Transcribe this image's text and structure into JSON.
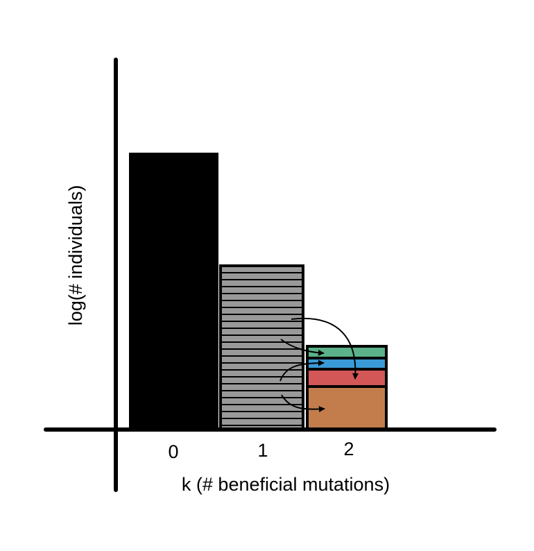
{
  "diagram": {
    "x_axis_label": "k (# beneficial mutations)",
    "y_axis_label": "log(# individuals)",
    "categories": [
      "0",
      "1",
      "2"
    ],
    "relative_heights": [
      1.0,
      0.59,
      0.3
    ],
    "bar_fill_colors": {
      "k0": "#000000",
      "k1": "#999999",
      "k1_stripes": "#000000"
    },
    "k2_segments": [
      {
        "name": "green",
        "color": "#5bb28a"
      },
      {
        "name": "blue",
        "color": "#3a9ad6"
      },
      {
        "name": "red",
        "color": "#d45757"
      },
      {
        "name": "orange",
        "color": "#c37d4c"
      }
    ],
    "arrow_count": 4
  }
}
